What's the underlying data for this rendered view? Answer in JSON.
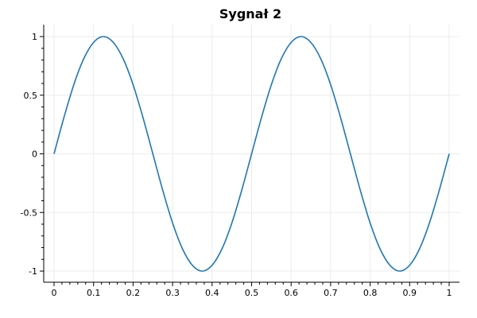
{
  "chart_data": {
    "type": "line",
    "title": "Sygnał 2",
    "xlabel": "",
    "ylabel": "",
    "xlim": [
      0,
      1
    ],
    "ylim": [
      -1,
      1
    ],
    "grid": true,
    "x_ticks": [
      0,
      0.1,
      0.2,
      0.3,
      0.4,
      0.5,
      0.6,
      0.7,
      0.8,
      0.9,
      1
    ],
    "x_tick_labels": [
      "0",
      "0.1",
      "0.2",
      "0.3",
      "0.4",
      "0.5",
      "0.6",
      "0.7",
      "0.8",
      "0.9",
      "1"
    ],
    "y_ticks": [
      1,
      0.5,
      0,
      -0.5,
      -1
    ],
    "y_tick_labels": [
      "1",
      "0.5",
      "0",
      "-0.5",
      "-1"
    ],
    "series": [
      {
        "color": "#1f77b4",
        "x": [
          0,
          0.025,
          0.05,
          0.075,
          0.1,
          0.125,
          0.15,
          0.175,
          0.2,
          0.225,
          0.25,
          0.275,
          0.3,
          0.325,
          0.35,
          0.375,
          0.4,
          0.425,
          0.45,
          0.475,
          0.5,
          0.525,
          0.55,
          0.575,
          0.6,
          0.625,
          0.65,
          0.675,
          0.7,
          0.725,
          0.75,
          0.775,
          0.8,
          0.825,
          0.85,
          0.875,
          0.9,
          0.925,
          0.95,
          0.975,
          1
        ],
        "y": [
          0,
          0.31,
          0.59,
          0.81,
          0.95,
          1,
          0.95,
          0.81,
          0.59,
          0.31,
          0,
          -0.31,
          -0.59,
          -0.81,
          -0.95,
          -1,
          -0.95,
          -0.81,
          -0.59,
          -0.31,
          0,
          0.31,
          0.59,
          0.81,
          0.95,
          1,
          0.95,
          0.81,
          0.59,
          0.31,
          0,
          -0.31,
          -0.59,
          -0.81,
          -0.95,
          -1,
          -0.95,
          -0.81,
          -0.59,
          -0.31,
          0
        ]
      }
    ]
  },
  "colors": {
    "line": "#1f77b4",
    "grid": "#ebebeb",
    "axis": "#000000"
  }
}
